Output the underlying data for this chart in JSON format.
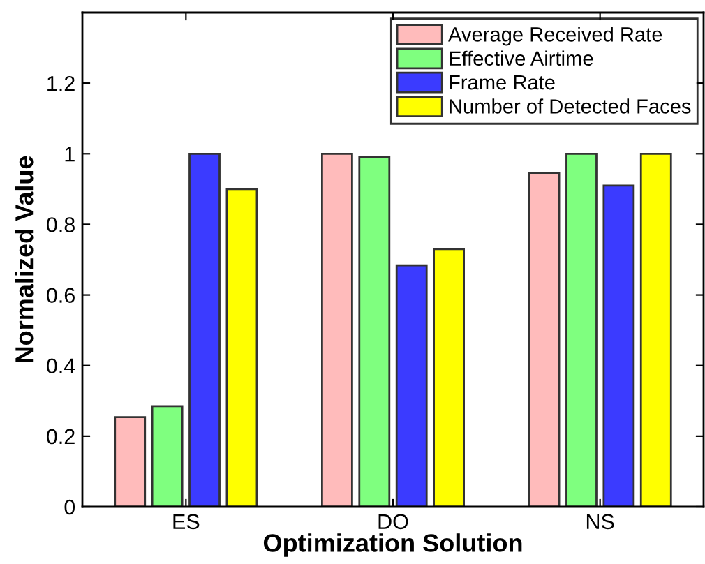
{
  "chart_data": {
    "type": "bar",
    "xlabel": "Optimization Solution",
    "ylabel": "Normalized Value",
    "categories": [
      "ES",
      "DO",
      "NS"
    ],
    "series": [
      {
        "name": "Average Received Rate",
        "color": "#ffbbbb",
        "values": [
          0.254,
          1.0,
          0.946
        ]
      },
      {
        "name": "Effective Airtime",
        "color": "#7fff7f",
        "values": [
          0.285,
          0.99,
          1.0
        ]
      },
      {
        "name": "Frame Rate",
        "color": "#3b3bff",
        "values": [
          1.0,
          0.684,
          0.91
        ]
      },
      {
        "name": "Number of Detected Faces",
        "color": "#ffff00",
        "values": [
          0.9,
          0.73,
          1.0
        ]
      }
    ],
    "ylim": [
      0,
      1.4
    ],
    "yticks": [
      0,
      0.2,
      0.4,
      0.6,
      0.8,
      {
        "value": 1,
        "label": "1"
      },
      1.2
    ],
    "grid": false,
    "legend": "top right"
  }
}
